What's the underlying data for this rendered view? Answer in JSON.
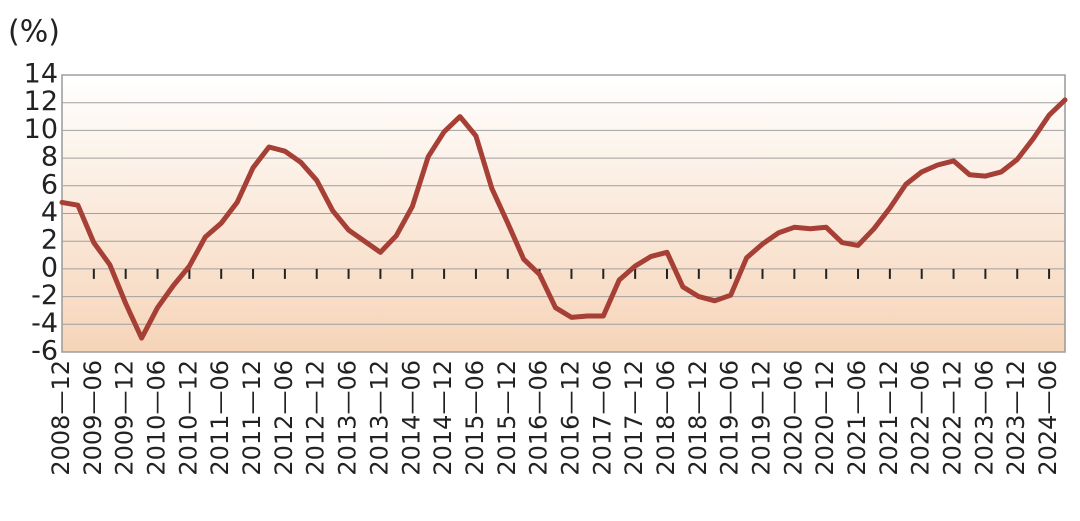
{
  "chart_data": {
    "type": "line",
    "y_label": "(%)",
    "categories": [
      "2008—12",
      null,
      "2009—06",
      null,
      "2009—12",
      null,
      "2010—06",
      null,
      "2010—12",
      null,
      "2011—06",
      null,
      "2011—12",
      null,
      "2012—06",
      null,
      "2012—12",
      null,
      "2013—06",
      null,
      "2013—12",
      null,
      "2014—06",
      null,
      "2014—12",
      null,
      "2015—06",
      null,
      "2015—12",
      null,
      "2016—06",
      null,
      "2016—12",
      null,
      "2017—06",
      null,
      "2017—12",
      null,
      "2018—06",
      null,
      "2018—12",
      null,
      "2019—06",
      null,
      "2019—12",
      null,
      "2020—06",
      null,
      "2020—12",
      null,
      "2021—06",
      null,
      "2021—12",
      null,
      "2022—06",
      null,
      "2022—12",
      null,
      "2023—06",
      null,
      "2023—12",
      null,
      "2024—06",
      null
    ],
    "values": [
      4.8,
      4.6,
      1.9,
      0.3,
      -2.5,
      -5.0,
      -2.8,
      -1.2,
      0.2,
      2.3,
      3.3,
      4.8,
      7.3,
      8.8,
      8.5,
      7.7,
      6.4,
      4.2,
      2.8,
      2.0,
      1.2,
      2.4,
      4.5,
      8.1,
      9.9,
      11.0,
      9.6,
      5.8,
      3.3,
      0.7,
      -0.4,
      -2.8,
      -3.5,
      -3.4,
      -3.4,
      -0.8,
      0.2,
      0.9,
      1.2,
      -1.3,
      -2.0,
      -2.3,
      -1.9,
      0.8,
      1.8,
      2.6,
      3.0,
      2.9,
      3.0,
      1.9,
      1.7,
      2.9,
      4.4,
      6.1,
      7.0,
      7.5,
      7.8,
      6.8,
      6.7,
      7.0,
      7.9,
      9.4,
      11.1,
      12.2
    ],
    "color": "#a63f35",
    "ylim": [
      -6,
      14
    ],
    "yticks": [
      -6,
      -4,
      -2,
      0,
      2,
      4,
      6,
      8,
      10,
      12,
      14
    ],
    "grid": true
  }
}
